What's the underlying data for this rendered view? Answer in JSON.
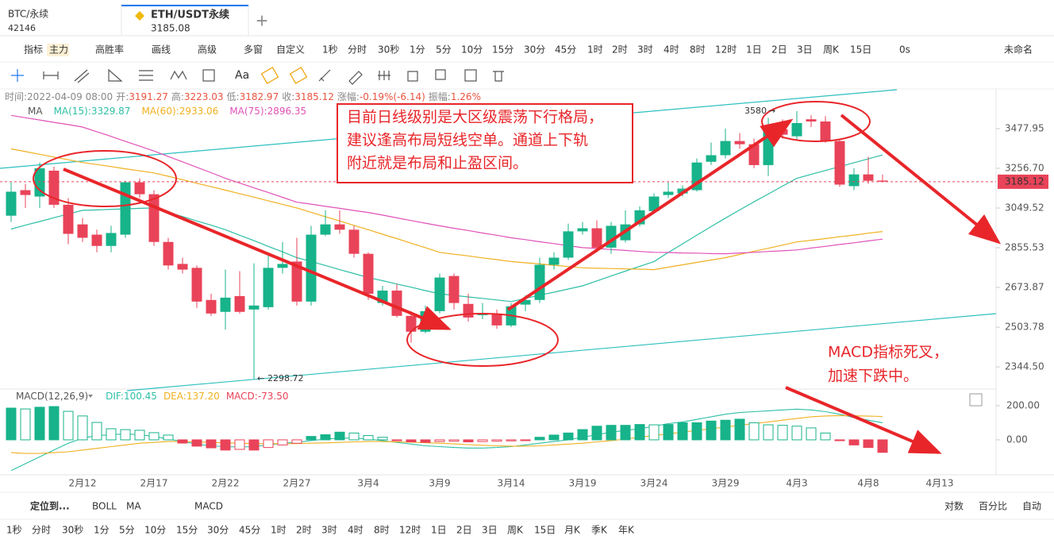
{
  "tabs": [
    {
      "symbol": "BTC/永续",
      "price": 42146
    },
    {
      "symbol": "ETH/USDT永续",
      "price": 3185.08
    }
  ],
  "toolbar": {
    "items": [
      "指标",
      "主力",
      "高胜率",
      "画线",
      "高级",
      "多窗",
      "自定义"
    ],
    "intervals": [
      {
        "label": "1秒",
        "color": "#f0a000"
      },
      {
        "label": "分时"
      },
      {
        "label": "30秒",
        "color": "#f0a000"
      },
      {
        "label": "1分"
      },
      {
        "label": "5分"
      },
      {
        "label": "10分"
      },
      {
        "label": "15分"
      },
      {
        "label": "30分"
      },
      {
        "label": "45分",
        "color": "#f0a000"
      },
      {
        "label": "1时"
      },
      {
        "label": "2时"
      },
      {
        "label": "3时"
      },
      {
        "label": "4时"
      },
      {
        "label": "8时",
        "color": "#f0a000"
      },
      {
        "label": "12时"
      },
      {
        "label": "1日",
        "color": "#1e7bf0"
      },
      {
        "label": "2日"
      },
      {
        "label": "3日"
      },
      {
        "label": "周K"
      },
      {
        "label": "15日",
        "color": "#f0a000"
      }
    ],
    "right": [
      "0s",
      "未命名"
    ]
  },
  "bottom": {
    "items": [
      "定位到...",
      "BOLL",
      "MA",
      "MACD"
    ],
    "scale_options": [
      {
        "label": "对数",
        "color": "#1e7bf0"
      },
      {
        "label": "百分比"
      },
      {
        "label": "自动",
        "color": "#1e7bf0"
      }
    ],
    "intervals": [
      {
        "label": "1秒",
        "color": "#f0a000"
      },
      {
        "label": "分时"
      },
      {
        "label": "30秒",
        "color": "#f0a000"
      },
      {
        "label": "1分"
      },
      {
        "label": "5分"
      },
      {
        "label": "10分"
      },
      {
        "label": "15分"
      },
      {
        "label": "30分"
      },
      {
        "label": "45分",
        "color": "#f0a000"
      },
      {
        "label": "1时"
      },
      {
        "label": "2时"
      },
      {
        "label": "3时"
      },
      {
        "label": "4时"
      },
      {
        "label": "8时",
        "color": "#f0a000"
      },
      {
        "label": "12时"
      },
      {
        "label": "1日",
        "color": "#1e7bf0"
      },
      {
        "label": "2日"
      },
      {
        "label": "3日"
      },
      {
        "label": "周K"
      },
      {
        "label": "15日",
        "color": "#f0a000"
      },
      {
        "label": "月K"
      },
      {
        "label": "季K"
      },
      {
        "label": "年K"
      }
    ]
  },
  "chart_data": [
    {
      "type": "candlestick",
      "title": "MA",
      "info": {
        "time": "时间:2022-04-09 08:00",
        "open": "开:",
        "high": "高:",
        "low": "低:",
        "close": "收:",
        "change": "涨幅:",
        "change_value": "-0.19%(-6.14)",
        "amplitude": "振幅:",
        "amplitude_value": "1.26%"
      },
      "categories": [
        null,
        null,
        null,
        null,
        null,
        "2月12",
        null,
        null,
        null,
        null,
        "2月17",
        null,
        null,
        null,
        null,
        "2月22",
        null,
        null,
        null,
        null,
        "2月27",
        null,
        null,
        null,
        null,
        "3月4",
        null,
        null,
        null,
        null,
        "3月9",
        null,
        null,
        null,
        null,
        "3月14",
        null,
        null,
        null,
        null,
        "3月19",
        null,
        null,
        null,
        null,
        "3月24",
        null,
        null,
        null,
        null,
        "3月29",
        null,
        null,
        null,
        null,
        "4月3",
        null,
        null,
        null,
        null,
        "4月8",
        null,
        null,
        null,
        null,
        "4月13"
      ],
      "open": [
        3011,
        3141,
        3108,
        3244,
        3066,
        2968,
        2918,
        2864,
        2918,
        3182,
        3120,
        2883,
        2780,
        2762,
        2619,
        2568,
        2636,
        2578,
        2588,
        2762,
        2791,
        2612,
        2918,
        2968,
        2942,
        2827,
        2606,
        2660,
        2551,
        2485,
        2571,
        2725,
        2602,
        2554,
        2558,
        2511,
        2599,
        2619,
        2776,
        2809,
        2934,
        2949,
        2856,
        2891,
        2968,
        3034,
        3116,
        3124,
        3141,
        3292,
        3328,
        3407,
        3389,
        3274,
        3474,
        3434,
        3532,
        3519,
        3407,
        3162,
        3224,
        3191.27,
        null,
        null,
        null,
        null
      ],
      "high": [
        3182,
        3174,
        3288,
        3265,
        3100,
        2999,
        2942,
        2961,
        3190,
        3203,
        3141,
        2903,
        2809,
        2773,
        2646,
        2754,
        2747,
        2783,
        2827,
        2883,
        2903,
        2961,
        3038,
        3038,
        2961,
        2834,
        2681,
        2689,
        2571,
        2595,
        2736,
        2736,
        2646,
        2606,
        2578,
        2606,
        2639,
        2809,
        2834,
        2972,
        2980,
        2988,
        2980,
        3038,
        3058,
        3124,
        3182,
        3166,
        3310,
        3398,
        3478,
        3452,
        3420,
        3540,
        3532,
        3580,
        3555,
        3550,
        3416,
        3257,
        3319,
        3223.03,
        null,
        null,
        null,
        null
      ],
      "low": [
        2980,
        3050,
        3050,
        3050,
        2872,
        2883,
        2834,
        2834,
        2903,
        3100,
        2864,
        2754,
        2736,
        2585,
        2551,
        2494,
        2561,
        2298.72,
        2578,
        2736,
        2595,
        2595,
        2911,
        2922,
        2809,
        2619,
        2595,
        2544,
        2440,
        2478,
        2561,
        2578,
        2527,
        2537,
        2497,
        2504,
        2571,
        2606,
        2754,
        2798,
        2918,
        2834,
        2827,
        2880,
        2957,
        3019,
        3100,
        3108,
        3133,
        3274,
        3310,
        3363,
        3257,
        3215,
        3420,
        3416,
        3487,
        3398,
        3158,
        3141,
        3174,
        3182.97,
        null,
        null,
        null,
        null
      ],
      "close": [
        3133,
        3116,
        3257,
        3066,
        2922,
        2903,
        2864,
        2926,
        3182,
        3120,
        2883,
        2773,
        2754,
        2612,
        2561,
        2629,
        2568,
        2595,
        2762,
        2780,
        2612,
        2918,
        2968,
        2942,
        2827,
        2646,
        2660,
        2551,
        2485,
        2571,
        2718,
        2606,
        2544,
        2561,
        2511,
        2592,
        2619,
        2776,
        2809,
        2934,
        2949,
        2856,
        2961,
        2968,
        3038,
        3108,
        3133,
        3149,
        3288,
        3328,
        3407,
        3389,
        3274,
        3474,
        3443,
        3510,
        3519,
        3407,
        3170,
        3224,
        3190,
        3185.12,
        null,
        null,
        null,
        null
      ],
      "up_color": "#17b38a",
      "down_color": "#e94359",
      "series": [
        {
          "name": "MA(15):",
          "color": "#2ebfa5",
          "values": [
            2945,
            2964,
            2982,
            3001,
            3019,
            3038,
            3040,
            3043,
            3045,
            3048,
            3050,
            3028,
            3007,
            2985,
            2964,
            2942,
            2915,
            2889,
            2862,
            2836,
            2809,
            2791,
            2773,
            2754,
            2736,
            2718,
            2704,
            2689,
            2675,
            2660,
            2646,
            2639,
            2632,
            2626,
            2619,
            2612,
            2626,
            2640,
            2653,
            2667,
            2681,
            2703,
            2725,
            2747,
            2769,
            2791,
            2833,
            2874,
            2916,
            2957,
            2999,
            3040,
            3081,
            3121,
            3162,
            3203,
            3224,
            3245,
            3266,
            3287,
            3308,
            3329.87,
            null,
            null,
            null,
            null
          ]
        },
        {
          "name": "MA(60):",
          "color": "#f0b020",
          "values": [
            3363,
            3348,
            3333,
            3318,
            3303,
            3288,
            3277,
            3266,
            3254,
            3243,
            3232,
            3214,
            3196,
            3177,
            3159,
            3141,
            3123,
            3105,
            3086,
            3068,
            3050,
            3028,
            3006,
            2985,
            2963,
            2942,
            2920,
            2899,
            2877,
            2856,
            2834,
            2825,
            2817,
            2808,
            2800,
            2791,
            2785,
            2780,
            2774,
            2768,
            2762,
            2760,
            2759,
            2757,
            2756,
            2754,
            2765,
            2776,
            2787,
            2798,
            2809,
            2824,
            2839,
            2853,
            2868,
            2883,
            2891,
            2899,
            2908,
            2916,
            2925,
            2933.06,
            null,
            null,
            null,
            null
          ]
        },
        {
          "name": "MA(75):",
          "color": "#e052b8",
          "values": [
            3555,
            3541,
            3528,
            3514,
            3501,
            3487,
            3460,
            3433,
            3405,
            3378,
            3351,
            3321,
            3292,
            3262,
            3233,
            3203,
            3178,
            3153,
            3129,
            3104,
            3079,
            3069,
            3058,
            3048,
            3037,
            3027,
            3014,
            3000,
            2987,
            2974,
            2961,
            2949,
            2938,
            2926,
            2915,
            2903,
            2894,
            2884,
            2875,
            2865,
            2856,
            2852,
            2847,
            2843,
            2838,
            2834,
            2833,
            2831,
            2830,
            2828,
            2827,
            2831,
            2834,
            2838,
            2841,
            2845,
            2854,
            2862,
            2871,
            2879,
            2888,
            2896.35,
            null,
            null,
            null,
            null
          ]
        }
      ],
      "ylim": [
        2260,
        3709
      ],
      "log_scale": true,
      "yticks": [
        3477.95,
        {
          "value": 3256.7,
          "label": "3256.70"
        },
        3049.52,
        2855.53,
        2673.87,
        2503.78,
        {
          "value": 2344.5,
          "label": "2344.50"
        }
      ],
      "annotations": [
        "目前日线级别是大区级震荡下行格局，",
        "建议逢高布局短线空单。通道上下轨",
        "附近就是布局和止盈区间。"
      ]
    },
    {
      "type": "macd",
      "title": "MACD(12,26,9)",
      "series": [
        {
          "name": "DIF:",
          "color": "#2ebfa5",
          "values": [
            -180,
            -140,
            -100,
            -60,
            -20,
            10,
            25,
            30,
            35,
            30,
            20,
            5,
            -10,
            -25,
            -35,
            -40,
            -42,
            -40,
            -30,
            -20,
            -15,
            -5,
            5,
            10,
            10,
            5,
            -5,
            -15,
            -25,
            -35,
            -40,
            -45,
            -48,
            -48,
            -45,
            -40,
            -30,
            -20,
            -10,
            0,
            15,
            30,
            45,
            55,
            65,
            80,
            95,
            105,
            120,
            135,
            150,
            160,
            165,
            170,
            175,
            180,
            175,
            165,
            150,
            130,
            115,
            100.45,
            null,
            null,
            null,
            null
          ]
        },
        {
          "name": "DEA:",
          "color": "#f0b020",
          "values": [
            -75,
            -80,
            -80,
            -75,
            -70,
            -60,
            -50,
            -40,
            -30,
            -20,
            -15,
            -10,
            -10,
            -12,
            -15,
            -18,
            -20,
            -22,
            -23,
            -22,
            -22,
            -20,
            -18,
            -15,
            -12,
            -10,
            -10,
            -12,
            -14,
            -17,
            -20,
            -24,
            -28,
            -32,
            -35,
            -37,
            -37,
            -35,
            -30,
            -25,
            -20,
            -12,
            -5,
            5,
            15,
            25,
            35,
            45,
            55,
            65,
            75,
            85,
            95,
            105,
            115,
            125,
            135,
            140,
            142,
            141,
            139,
            137.2,
            null,
            null,
            null,
            null
          ],
          "value_labels": [
            null,
            null,
            null,
            null,
            null,
            null,
            null,
            null,
            null,
            null,
            null,
            null,
            null,
            null,
            null,
            null,
            null,
            null,
            null,
            null,
            null,
            null,
            null,
            null,
            null,
            null,
            null,
            null,
            null,
            null,
            null,
            null,
            null,
            null,
            null,
            null,
            null,
            null,
            null,
            null,
            null,
            null,
            null,
            null,
            null,
            null,
            null,
            null,
            null,
            null,
            null,
            null,
            null,
            null,
            null,
            null,
            null,
            null,
            null,
            null,
            null,
            "137.20",
            null,
            null,
            null,
            null
          ]
        },
        {
          "name": "MACD:",
          "color": "#e94359",
          "histogram": true,
          "values": [
            186,
            181,
            191,
            195,
            167,
            140,
            102,
            65,
            60,
            56,
            42,
            28,
            -19,
            -37,
            -47,
            -60,
            -56,
            -60,
            -45,
            -30,
            -20,
            20,
            30,
            45,
            40,
            25,
            15,
            -5,
            -12,
            -15,
            -10,
            -8,
            -12,
            -10,
            -8,
            -6,
            -4,
            15,
            28,
            40,
            60,
            80,
            85,
            85,
            90,
            88,
            90,
            100,
            100,
            110,
            115,
            121,
            100,
            88,
            85,
            80,
            70,
            40,
            -5,
            -30,
            -45,
            -73.5,
            null,
            null,
            null,
            null
          ],
          "value_labels": [
            null,
            null,
            null,
            null,
            null,
            null,
            null,
            null,
            null,
            null,
            null,
            null,
            null,
            null,
            null,
            null,
            null,
            null,
            null,
            null,
            null,
            null,
            null,
            null,
            null,
            null,
            null,
            null,
            null,
            null,
            null,
            null,
            null,
            null,
            null,
            null,
            null,
            null,
            null,
            null,
            null,
            null,
            null,
            null,
            null,
            null,
            null,
            null,
            null,
            null,
            null,
            null,
            null,
            null,
            null,
            null,
            null,
            null,
            null,
            null,
            null,
            "-73.50",
            null,
            null,
            null,
            null
          ]
        }
      ],
      "ylim": [
        -205,
        279
      ],
      "yticks": [
        {
          "value": 200,
          "label": "200.00"
        },
        {
          "value": 0,
          "label": "0.00"
        }
      ],
      "annotations": [
        "MACD指标死叉，",
        "加速下跌中。"
      ]
    }
  ]
}
